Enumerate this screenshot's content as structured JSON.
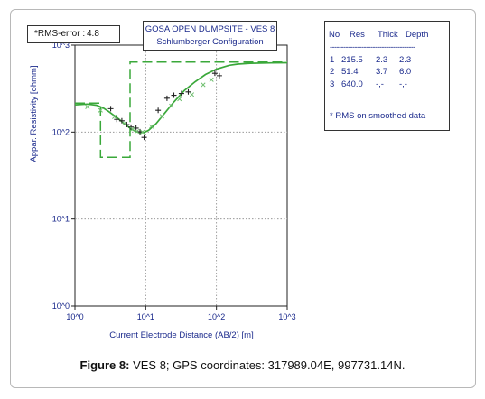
{
  "rms_box": {
    "label": "*RMS-error :",
    "value": "4.8"
  },
  "title_box": {
    "line1": "GOSA OPEN DUMPSITE - VES 8",
    "line2": "Schlumberger Configuration"
  },
  "legend_table": {
    "headers": [
      "No",
      "Res",
      "Thick",
      "Depth"
    ],
    "separator": "--------------------------------------",
    "rows": [
      [
        "1",
        "215.5",
        "2.3",
        "2.3"
      ],
      [
        "2",
        "51.4",
        "3.7",
        "6.0"
      ],
      [
        "3",
        "640.0",
        "-,-",
        "-,-"
      ]
    ],
    "note": "* RMS on smoothed data"
  },
  "caption": {
    "prefix": "Figure 8:",
    "text": " VES 8; GPS coordinates: 317989.04E, 997731.14N."
  },
  "chart_data": {
    "type": "scatter",
    "title": "",
    "xlabel": "Current Electrode Distance (AB/2) [m]",
    "ylabel": "Appar. Resistivity [ohmm]",
    "x_scale": "log",
    "y_scale": "log",
    "xlim": [
      1,
      1000
    ],
    "ylim": [
      1,
      1000
    ],
    "x_ticks": [
      "10^0",
      "10^1",
      "10^2",
      "10^3"
    ],
    "y_ticks": [
      "10^0",
      "10^1",
      "10^2",
      "10^3"
    ],
    "grid": "dotted at decades",
    "colors": {
      "model": "#3aa83a",
      "observed": "#222222",
      "smoothed": "#6fbf6f",
      "text": "#1b2a8c"
    },
    "series": [
      {
        "kind": "observed-plus",
        "points": [
          [
            3.2,
            186
          ],
          [
            3.9,
            140
          ],
          [
            4.6,
            135
          ],
          [
            5.4,
            122
          ],
          [
            6.2,
            114
          ],
          [
            7.3,
            111
          ],
          [
            8.3,
            101
          ],
          [
            9.5,
            87
          ],
          [
            15,
            178
          ],
          [
            20,
            245
          ],
          [
            25,
            265
          ],
          [
            32,
            278
          ],
          [
            40,
            290
          ],
          [
            95,
            475
          ],
          [
            110,
            445
          ]
        ]
      },
      {
        "kind": "smoothed-x",
        "points": [
          [
            1.5,
            195
          ],
          [
            2.3,
            178
          ],
          [
            3.6,
            150
          ],
          [
            5.0,
            126
          ],
          [
            6.5,
            108
          ],
          [
            7.5,
            102
          ],
          [
            9.0,
            100
          ],
          [
            12,
            116
          ],
          [
            17,
            152
          ],
          [
            23,
            200
          ],
          [
            30,
            240
          ],
          [
            45,
            270
          ],
          [
            65,
            350
          ],
          [
            85,
            400
          ]
        ]
      },
      {
        "kind": "calculated-curve",
        "points": [
          [
            1,
            206
          ],
          [
            1.5,
            210
          ],
          [
            2,
            204
          ],
          [
            2.5,
            190
          ],
          [
            3,
            172
          ],
          [
            4,
            145
          ],
          [
            5,
            125
          ],
          [
            6,
            111
          ],
          [
            7,
            103
          ],
          [
            8,
            99
          ],
          [
            9.5,
            99
          ],
          [
            11,
            105
          ],
          [
            14,
            125
          ],
          [
            18,
            160
          ],
          [
            25,
            222
          ],
          [
            35,
            300
          ],
          [
            50,
            380
          ],
          [
            70,
            460
          ],
          [
            100,
            530
          ],
          [
            150,
            585
          ],
          [
            200,
            605
          ],
          [
            300,
            618
          ],
          [
            600,
            625
          ],
          [
            1000,
            628
          ]
        ]
      },
      {
        "kind": "layer-model",
        "points": [
          [
            1,
            215.5
          ],
          [
            2.3,
            215.5
          ],
          [
            2.3,
            51.4
          ],
          [
            6.0,
            51.4
          ],
          [
            6.0,
            640
          ],
          [
            1000,
            640
          ]
        ]
      }
    ]
  }
}
